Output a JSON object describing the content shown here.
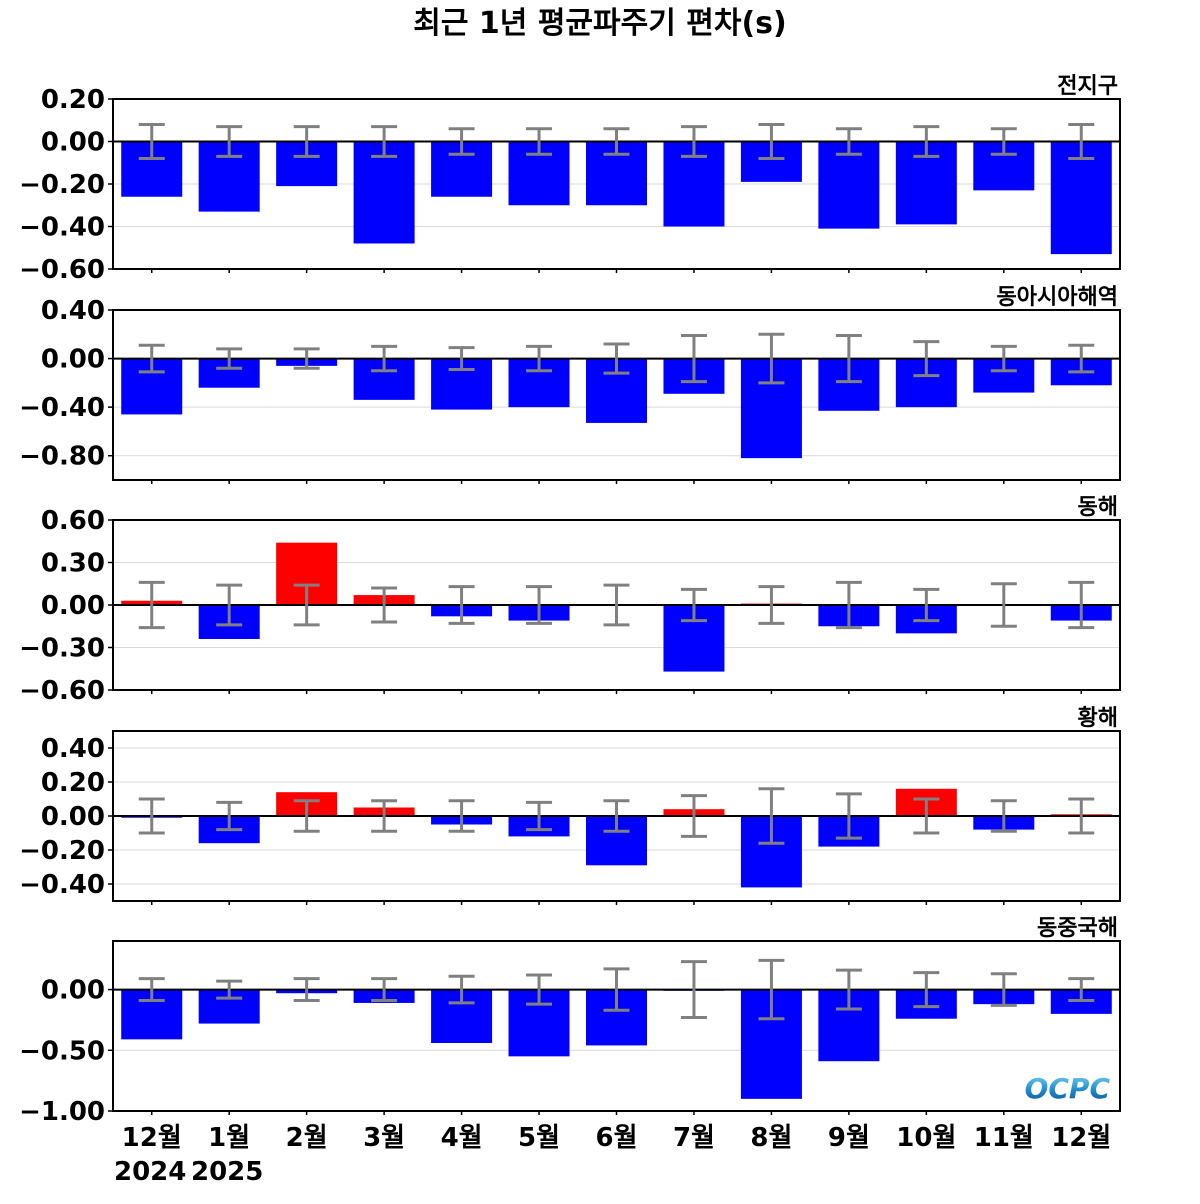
{
  "chart_data": {
    "type": "bar",
    "title": "최근 1년 평균파주기 편차(s)",
    "categories": [
      "12월",
      "1월",
      "2월",
      "3월",
      "4월",
      "5월",
      "6월",
      "7월",
      "8월",
      "9월",
      "10월",
      "11월",
      "12월"
    ],
    "year_labels": [
      "2024",
      "2025"
    ],
    "colors": {
      "positive": "#ff0000",
      "negative": "#0000ff",
      "errorbar": "#808080",
      "zero_line": "#000000",
      "grid": "#d9d9d9"
    },
    "grid": true,
    "panels": [
      {
        "label": "전지구",
        "ylim": [
          -0.6,
          0.2
        ],
        "yticks": [
          0.2,
          0.0,
          -0.2,
          -0.4,
          -0.6
        ],
        "ytick_labels": [
          "0.20",
          "0.00",
          "−0.20",
          "−0.40",
          "−0.60"
        ],
        "values": [
          -0.26,
          -0.33,
          -0.21,
          -0.48,
          -0.26,
          -0.3,
          -0.3,
          -0.4,
          -0.19,
          -0.41,
          -0.39,
          -0.23,
          -0.53
        ],
        "errors": [
          0.08,
          0.07,
          0.07,
          0.07,
          0.06,
          0.06,
          0.06,
          0.07,
          0.08,
          0.06,
          0.07,
          0.06,
          0.08
        ]
      },
      {
        "label": "동아시아해역",
        "ylim": [
          -1.0,
          0.4
        ],
        "yticks": [
          0.4,
          0.0,
          -0.4,
          -0.8
        ],
        "ytick_labels": [
          "0.40",
          "0.00",
          "−0.40",
          "−0.80"
        ],
        "values": [
          -0.46,
          -0.24,
          -0.06,
          -0.34,
          -0.42,
          -0.4,
          -0.53,
          -0.29,
          -0.82,
          -0.43,
          -0.4,
          -0.28,
          -0.22
        ],
        "errors": [
          0.11,
          0.08,
          0.08,
          0.1,
          0.09,
          0.1,
          0.12,
          0.19,
          0.2,
          0.19,
          0.14,
          0.1,
          0.11
        ]
      },
      {
        "label": "동해",
        "ylim": [
          -0.6,
          0.6
        ],
        "yticks": [
          0.6,
          0.3,
          0.0,
          -0.3,
          -0.6
        ],
        "ytick_labels": [
          "0.60",
          "0.30",
          "0.00",
          "−0.30",
          "−0.60"
        ],
        "values": [
          0.03,
          -0.24,
          0.44,
          0.07,
          -0.08,
          -0.11,
          0.005,
          -0.47,
          0.01,
          -0.15,
          -0.2,
          0.005,
          -0.11
        ],
        "errors": [
          0.16,
          0.14,
          0.14,
          0.12,
          0.13,
          0.13,
          0.14,
          0.11,
          0.13,
          0.16,
          0.11,
          0.15,
          0.16
        ]
      },
      {
        "label": "황해",
        "ylim": [
          -0.5,
          0.5
        ],
        "yticks": [
          0.4,
          0.2,
          0.0,
          -0.2,
          -0.4
        ],
        "ytick_labels": [
          "0.40",
          "0.20",
          "0.00",
          "−0.20",
          "−0.40"
        ],
        "values": [
          -0.01,
          -0.16,
          0.14,
          0.05,
          -0.05,
          -0.12,
          -0.29,
          0.04,
          -0.42,
          -0.18,
          0.16,
          -0.08,
          0.01
        ],
        "errors": [
          0.1,
          0.08,
          0.09,
          0.09,
          0.09,
          0.08,
          0.09,
          0.12,
          0.16,
          0.13,
          0.1,
          0.09,
          0.1
        ]
      },
      {
        "label": "동중국해",
        "ylim": [
          -1.0,
          0.4
        ],
        "yticks": [
          0.0,
          -0.5,
          -1.0
        ],
        "ytick_labels": [
          "0.00",
          "−0.50",
          "−1.00"
        ],
        "values": [
          -0.41,
          -0.28,
          -0.03,
          -0.11,
          -0.44,
          -0.55,
          -0.46,
          -0.01,
          -0.9,
          -0.59,
          -0.24,
          -0.12,
          -0.2
        ],
        "errors": [
          0.09,
          0.07,
          0.09,
          0.09,
          0.11,
          0.12,
          0.17,
          0.23,
          0.24,
          0.16,
          0.14,
          0.13,
          0.09
        ]
      }
    ]
  },
  "logo": {
    "text": "OCPC"
  }
}
